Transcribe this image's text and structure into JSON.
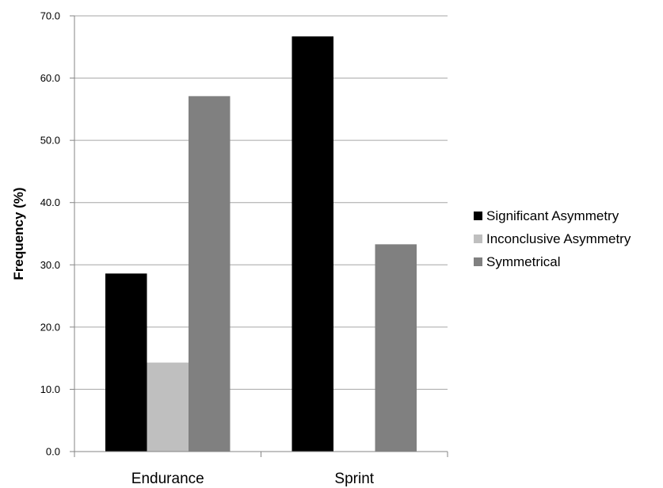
{
  "chart_data": {
    "type": "bar",
    "categories": [
      "Endurance",
      "Sprint"
    ],
    "series": [
      {
        "name": "Significant Asymmetry",
        "values": [
          28.6,
          66.7
        ],
        "color": "#000000"
      },
      {
        "name": "Inconclusive Asymmetry",
        "values": [
          14.3,
          0.0
        ],
        "color": "#bfbfbf"
      },
      {
        "name": "Symmetrical",
        "values": [
          57.1,
          33.3
        ],
        "color": "#808080"
      }
    ],
    "ylabel": "Frequency (%)",
    "xlabel": "",
    "ylim": [
      0,
      70
    ],
    "yticks": [
      "0.0",
      "10.0",
      "20.0",
      "30.0",
      "40.0",
      "50.0",
      "60.0",
      "70.0"
    ],
    "grid": true,
    "legend": "right",
    "gridline_color": "#a6a6a6"
  }
}
